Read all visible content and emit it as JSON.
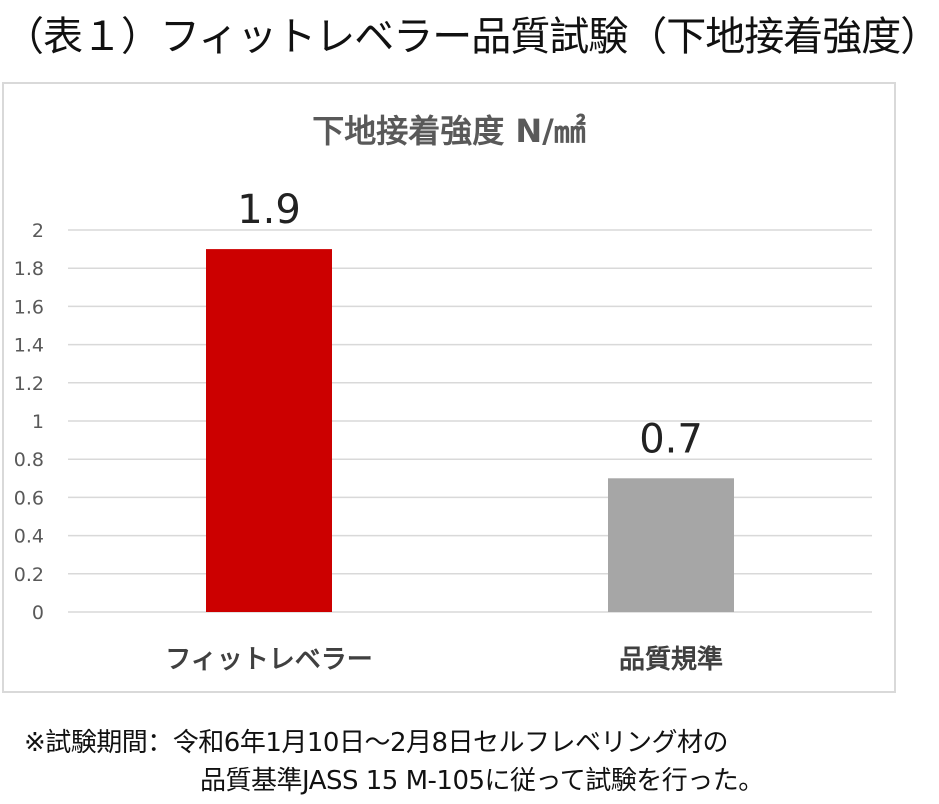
{
  "heading": "（表１）フィットレベラー品質試験（下地接着強度）",
  "footnote": {
    "line1": "※試験期間：令和6年1月10日～2月8日セルフレベリング材の",
    "line2": "品質基準JASS 15 M-105に従って試験を行った。"
  },
  "chart_data": {
    "type": "bar",
    "title": "下地接着強度 N/㎟",
    "categories": [
      "フィットレベラー",
      "品質規準"
    ],
    "values": [
      1.9,
      0.7
    ],
    "data_labels": [
      "1.9",
      "0.7"
    ],
    "colors": [
      "#cc0000",
      "#a6a6a6"
    ],
    "yticks": [
      "0",
      "0.2",
      "0.4",
      "0.6",
      "0.8",
      "1",
      "1.2",
      "1.4",
      "1.6",
      "1.8",
      "2"
    ],
    "ylim": [
      0,
      2
    ],
    "grid": true,
    "gridColor": "#d9d9d9",
    "legend": "none"
  }
}
